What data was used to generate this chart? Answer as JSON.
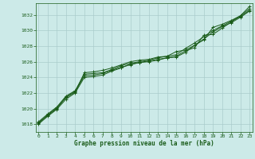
{
  "title": "Graphe pression niveau de la mer (hPa)",
  "bg_color": "#cceae8",
  "grid_color": "#aacccc",
  "line_color": "#1a5c1a",
  "xlim_min": -0.3,
  "xlim_max": 23.3,
  "ylim_min": 1017.0,
  "ylim_max": 1033.5,
  "xticks": [
    0,
    1,
    2,
    3,
    4,
    5,
    6,
    7,
    8,
    9,
    10,
    11,
    12,
    13,
    14,
    15,
    16,
    17,
    18,
    19,
    20,
    21,
    22,
    23
  ],
  "yticks": [
    1018,
    1020,
    1022,
    1024,
    1026,
    1028,
    1030,
    1032
  ],
  "series": [
    [
      1018.2,
      1019.1,
      1020.0,
      1021.5,
      1022.2,
      1024.2,
      1024.3,
      1024.5,
      1024.9,
      1025.3,
      1025.6,
      1025.9,
      1026.0,
      1026.2,
      1026.5,
      1026.7,
      1027.4,
      1027.8,
      1029.4,
      1029.5,
      1030.3,
      1031.1,
      1031.9,
      1032.8
    ],
    [
      1018.1,
      1019.2,
      1020.1,
      1021.4,
      1022.1,
      1024.6,
      1024.7,
      1024.9,
      1025.2,
      1025.6,
      1026.0,
      1026.2,
      1026.3,
      1026.6,
      1026.7,
      1027.3,
      1027.5,
      1028.1,
      1028.8,
      1030.4,
      1030.8,
      1031.3,
      1031.9,
      1033.1
    ],
    [
      1018.0,
      1019.0,
      1019.9,
      1021.2,
      1022.0,
      1024.0,
      1024.1,
      1024.3,
      1024.8,
      1025.2,
      1025.7,
      1025.9,
      1026.1,
      1026.3,
      1026.5,
      1026.6,
      1027.2,
      1028.1,
      1028.9,
      1029.8,
      1030.5,
      1031.0,
      1031.7,
      1032.5
    ],
    [
      1018.3,
      1019.3,
      1020.2,
      1021.6,
      1022.3,
      1024.4,
      1024.5,
      1024.6,
      1025.0,
      1025.5,
      1025.8,
      1026.0,
      1026.2,
      1026.5,
      1026.7,
      1026.9,
      1027.7,
      1028.4,
      1029.2,
      1030.0,
      1030.6,
      1031.2,
      1031.8,
      1032.6
    ]
  ]
}
